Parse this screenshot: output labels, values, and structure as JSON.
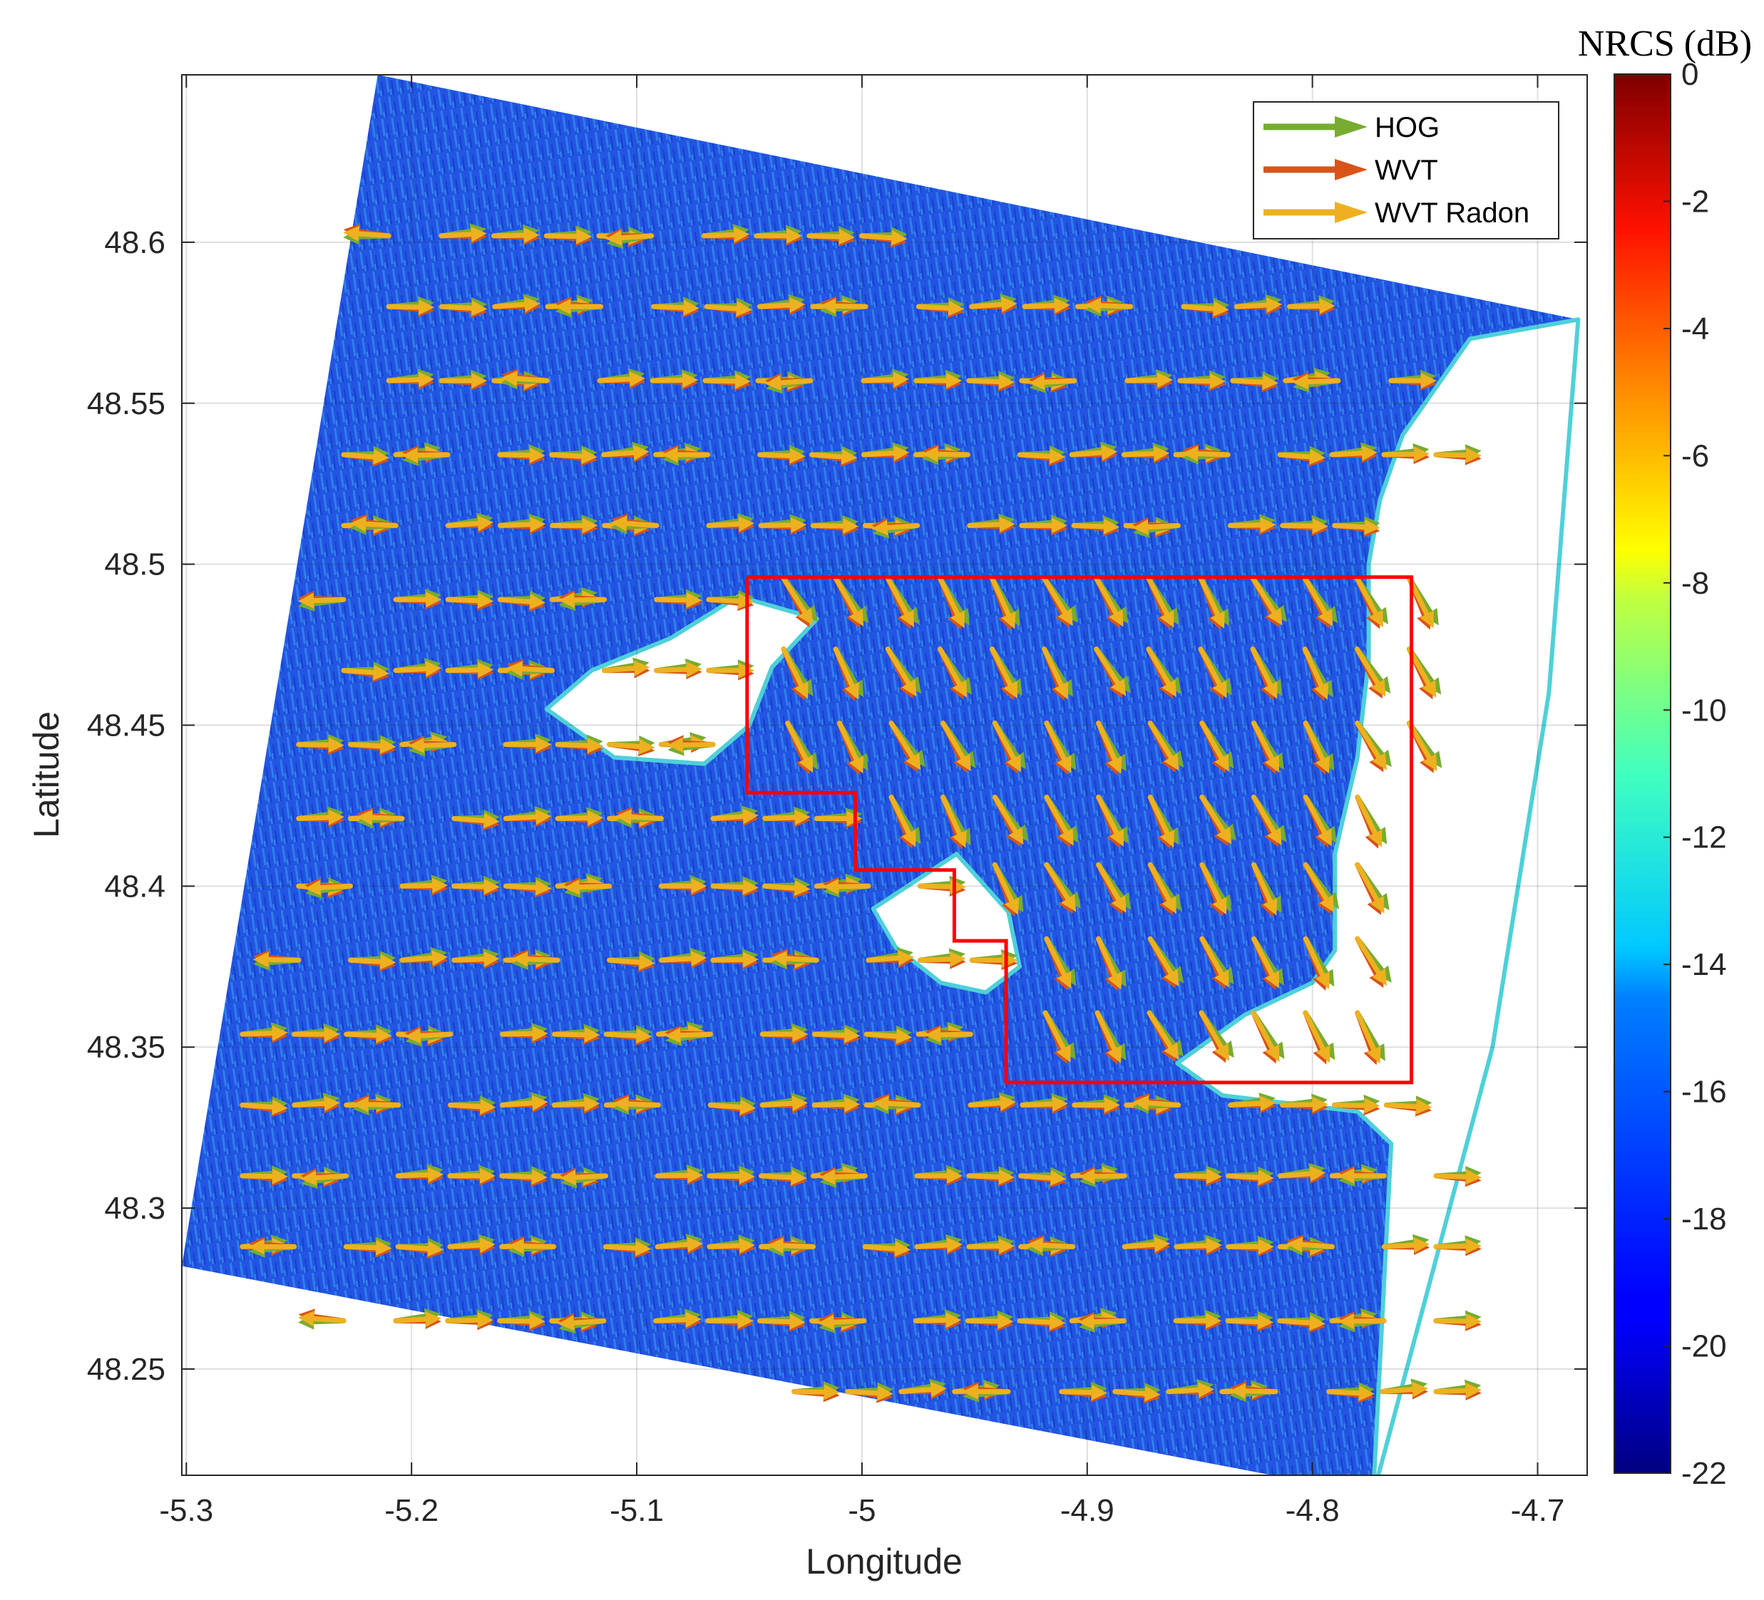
{
  "chart_data": {
    "type": "quiver-map",
    "xlabel": "Longitude",
    "ylabel": "Latitude",
    "xlim": [
      -5.302,
      -4.678
    ],
    "ylim": [
      48.217,
      48.652
    ],
    "xticks": [
      -5.3,
      -5.2,
      -5.1,
      -5.0,
      -4.9,
      -4.8,
      -4.7
    ],
    "xtick_labels": [
      "-5.3",
      "-5.2",
      "-5.1",
      "-5",
      "-4.9",
      "-4.8",
      "-4.7"
    ],
    "yticks": [
      48.25,
      48.3,
      48.35,
      48.4,
      48.45,
      48.5,
      48.55,
      48.6
    ],
    "ytick_labels": [
      "48.25",
      "48.3",
      "48.35",
      "48.4",
      "48.45",
      "48.5",
      "48.55",
      "48.6"
    ],
    "grid": true,
    "colorbar": {
      "title": "NRCS (dB)",
      "range": [
        -22,
        0
      ],
      "ticks": [
        0,
        -2,
        -4,
        -6,
        -8,
        -10,
        -12,
        -14,
        -16,
        -18,
        -20,
        -22
      ],
      "tick_labels": [
        "0",
        "-2",
        "-4",
        "-6",
        "-8",
        "-10",
        "-12",
        "-14",
        "-16",
        "-18",
        "-20",
        "-22"
      ],
      "colormap": "jet"
    },
    "legend": {
      "position": "top-right",
      "entries": [
        {
          "label": "HOG",
          "color": "#77ac30"
        },
        {
          "label": "WVT",
          "color": "#d95319"
        },
        {
          "label": "WVT Radon",
          "color": "#edb120"
        }
      ]
    },
    "sar_footprint_corners": [
      [
        -5.215,
        48.652
      ],
      [
        -4.682,
        48.576
      ],
      [
        -4.773,
        48.211
      ],
      [
        -5.302,
        48.282
      ]
    ],
    "region_box_color": "#ff0000",
    "region_box_polygon": [
      [
        -5.051,
        48.496
      ],
      [
        -4.756,
        48.496
      ],
      [
        -4.756,
        48.339
      ],
      [
        -4.936,
        48.339
      ],
      [
        -4.936,
        48.383
      ],
      [
        -4.959,
        48.383
      ],
      [
        -4.959,
        48.405
      ],
      [
        -5.003,
        48.405
      ],
      [
        -5.003,
        48.429
      ],
      [
        -5.051,
        48.429
      ]
    ],
    "land_areas": [
      {
        "name": "island",
        "polygon": [
          [
            -5.02,
            48.483
          ],
          [
            -5.055,
            48.49
          ],
          [
            -5.085,
            48.477
          ],
          [
            -5.12,
            48.467
          ],
          [
            -5.14,
            48.455
          ],
          [
            -5.11,
            48.44
          ],
          [
            -5.07,
            48.438
          ],
          [
            -5.05,
            48.45
          ],
          [
            -5.04,
            48.468
          ]
        ]
      },
      {
        "name": "peninsula",
        "polygon": [
          [
            -4.958,
            48.41
          ],
          [
            -4.935,
            48.392
          ],
          [
            -4.93,
            48.375
          ],
          [
            -4.945,
            48.367
          ],
          [
            -4.965,
            48.37
          ],
          [
            -4.985,
            48.381
          ],
          [
            -4.995,
            48.393
          ]
        ]
      },
      {
        "name": "mainland",
        "polygon": [
          [
            -4.682,
            48.576
          ],
          [
            -4.73,
            48.57
          ],
          [
            -4.745,
            48.555
          ],
          [
            -4.76,
            48.54
          ],
          [
            -4.77,
            48.52
          ],
          [
            -4.775,
            48.5
          ],
          [
            -4.775,
            48.47
          ],
          [
            -4.78,
            48.44
          ],
          [
            -4.79,
            48.41
          ],
          [
            -4.79,
            48.38
          ],
          [
            -4.8,
            48.37
          ],
          [
            -4.83,
            48.36
          ],
          [
            -4.86,
            48.345
          ],
          [
            -4.84,
            48.335
          ],
          [
            -4.78,
            48.33
          ],
          [
            -4.765,
            48.32
          ],
          [
            -4.773,
            48.211
          ],
          [
            -4.72,
            48.35
          ],
          [
            -4.695,
            48.46
          ]
        ]
      }
    ],
    "vector_field": {
      "note_units": "arrow direction in degrees from east, counter-clockwise",
      "rows": [
        {
          "lat": 48.602,
          "lon_start": -5.2,
          "lon_end": -4.99,
          "n": 10
        },
        {
          "lat": 48.58,
          "lon_start": -5.2,
          "lon_end": -4.8,
          "n": 18
        },
        {
          "lat": 48.557,
          "lon_start": -5.2,
          "lon_end": -4.755,
          "n": 20
        },
        {
          "lat": 48.534,
          "lon_start": -5.22,
          "lon_end": -4.735,
          "n": 22
        },
        {
          "lat": 48.512,
          "lon_start": -5.22,
          "lon_end": -4.78,
          "n": 20
        },
        {
          "lat": 48.489,
          "lon_start": -5.22,
          "lon_end": -4.757,
          "n": 21
        },
        {
          "lat": 48.467,
          "lon_start": -5.22,
          "lon_end": -4.757,
          "n": 21
        },
        {
          "lat": 48.444,
          "lon_start": -5.24,
          "lon_end": -4.757,
          "n": 22
        },
        {
          "lat": 48.421,
          "lon_start": -5.24,
          "lon_end": -4.78,
          "n": 21
        },
        {
          "lat": 48.4,
          "lon_start": -5.24,
          "lon_end": -4.78,
          "n": 21
        },
        {
          "lat": 48.377,
          "lon_start": -5.24,
          "lon_end": -4.78,
          "n": 21
        },
        {
          "lat": 48.354,
          "lon_start": -5.265,
          "lon_end": -4.78,
          "n": 22
        },
        {
          "lat": 48.332,
          "lon_start": -5.265,
          "lon_end": -4.757,
          "n": 23
        },
        {
          "lat": 48.31,
          "lon_start": -5.265,
          "lon_end": -4.735,
          "n": 24
        },
        {
          "lat": 48.288,
          "lon_start": -5.265,
          "lon_end": -4.735,
          "n": 24
        },
        {
          "lat": 48.265,
          "lon_start": -5.22,
          "lon_end": -4.735,
          "n": 22
        },
        {
          "lat": 48.243,
          "lon_start": -5.02,
          "lon_end": -4.735,
          "n": 13
        }
      ],
      "region_direction_deg": -62,
      "open_sea_direction_deg": 0,
      "variant_direction_deg": 180,
      "series_offsets_deg": {
        "HOG": 6,
        "WVT": -4,
        "WVT Radon": 0
      }
    }
  }
}
